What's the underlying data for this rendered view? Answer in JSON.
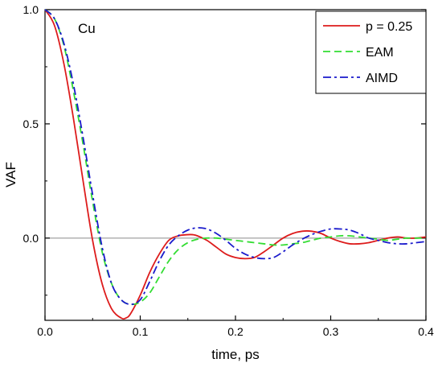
{
  "chart_data": {
    "type": "line",
    "title": "",
    "xlabel": "time, ps",
    "ylabel": "VAF",
    "xlim": [
      0.0,
      0.4
    ],
    "ylim": [
      -0.36,
      1.0
    ],
    "xticks": [
      0.0,
      0.1,
      0.2,
      0.3,
      0.4
    ],
    "xtick_labels": [
      "0.0",
      "0.1",
      "0.2",
      "0.3",
      "0.4"
    ],
    "yticks": [
      0.0,
      0.5,
      1.0
    ],
    "ytick_labels": [
      "0.0",
      "0.5",
      "1.0"
    ],
    "reference_line_y": 0.0,
    "annotation": "Cu",
    "legend_position": "top-right",
    "grid": false,
    "series": [
      {
        "name": "p = 0.25",
        "color": "#dd1c1c",
        "dash": "solid",
        "x": [
          0.0,
          0.01,
          0.02,
          0.03,
          0.04,
          0.05,
          0.06,
          0.07,
          0.08,
          0.085,
          0.09,
          0.1,
          0.11,
          0.12,
          0.13,
          0.14,
          0.15,
          0.155,
          0.16,
          0.17,
          0.18,
          0.19,
          0.2,
          0.21,
          0.22,
          0.23,
          0.24,
          0.25,
          0.26,
          0.27,
          0.28,
          0.29,
          0.3,
          0.31,
          0.32,
          0.33,
          0.34,
          0.35,
          0.36,
          0.37,
          0.38,
          0.39,
          0.4
        ],
        "y": [
          1.0,
          0.93,
          0.76,
          0.52,
          0.25,
          -0.01,
          -0.2,
          -0.31,
          -0.35,
          -0.35,
          -0.33,
          -0.25,
          -0.15,
          -0.07,
          -0.01,
          0.01,
          0.015,
          0.015,
          0.01,
          -0.01,
          -0.04,
          -0.07,
          -0.085,
          -0.09,
          -0.085,
          -0.06,
          -0.03,
          0.0,
          0.02,
          0.03,
          0.03,
          0.02,
          0.0,
          -0.015,
          -0.025,
          -0.025,
          -0.02,
          -0.01,
          0.0,
          0.005,
          0.0,
          0.0,
          0.005
        ]
      },
      {
        "name": "EAM",
        "color": "#33dd33",
        "dash": "dashed",
        "x": [
          0.0,
          0.01,
          0.02,
          0.03,
          0.04,
          0.05,
          0.06,
          0.07,
          0.08,
          0.09,
          0.1,
          0.11,
          0.12,
          0.13,
          0.14,
          0.15,
          0.16,
          0.17,
          0.18,
          0.19,
          0.2,
          0.21,
          0.22,
          0.23,
          0.24,
          0.25,
          0.26,
          0.27,
          0.28,
          0.29,
          0.3,
          0.31,
          0.32,
          0.33,
          0.34,
          0.35,
          0.36,
          0.37,
          0.38,
          0.39,
          0.4
        ],
        "y": [
          1.0,
          0.96,
          0.84,
          0.64,
          0.41,
          0.16,
          -0.06,
          -0.2,
          -0.27,
          -0.29,
          -0.28,
          -0.24,
          -0.17,
          -0.1,
          -0.05,
          -0.02,
          -0.005,
          0.0,
          0.0,
          -0.005,
          -0.01,
          -0.015,
          -0.02,
          -0.025,
          -0.03,
          -0.03,
          -0.025,
          -0.02,
          -0.01,
          0.0,
          0.005,
          0.01,
          0.01,
          0.005,
          0.0,
          -0.005,
          -0.01,
          -0.005,
          0.0,
          0.0,
          0.0
        ]
      },
      {
        "name": "AIMD",
        "color": "#1a1acc",
        "dash": "dashdot",
        "x": [
          0.0,
          0.01,
          0.02,
          0.03,
          0.04,
          0.05,
          0.06,
          0.07,
          0.08,
          0.09,
          0.1,
          0.11,
          0.12,
          0.13,
          0.14,
          0.15,
          0.16,
          0.17,
          0.18,
          0.19,
          0.2,
          0.21,
          0.22,
          0.23,
          0.24,
          0.25,
          0.26,
          0.27,
          0.28,
          0.29,
          0.3,
          0.31,
          0.32,
          0.33,
          0.34,
          0.35,
          0.36,
          0.37,
          0.38,
          0.39,
          0.4
        ],
        "y": [
          1.0,
          0.96,
          0.85,
          0.67,
          0.44,
          0.19,
          -0.04,
          -0.2,
          -0.27,
          -0.29,
          -0.27,
          -0.19,
          -0.1,
          -0.03,
          0.01,
          0.035,
          0.045,
          0.04,
          0.02,
          -0.01,
          -0.045,
          -0.07,
          -0.085,
          -0.09,
          -0.085,
          -0.06,
          -0.03,
          -0.005,
          0.015,
          0.03,
          0.04,
          0.04,
          0.035,
          0.02,
          0.0,
          -0.01,
          -0.02,
          -0.025,
          -0.025,
          -0.02,
          -0.015
        ]
      }
    ]
  }
}
